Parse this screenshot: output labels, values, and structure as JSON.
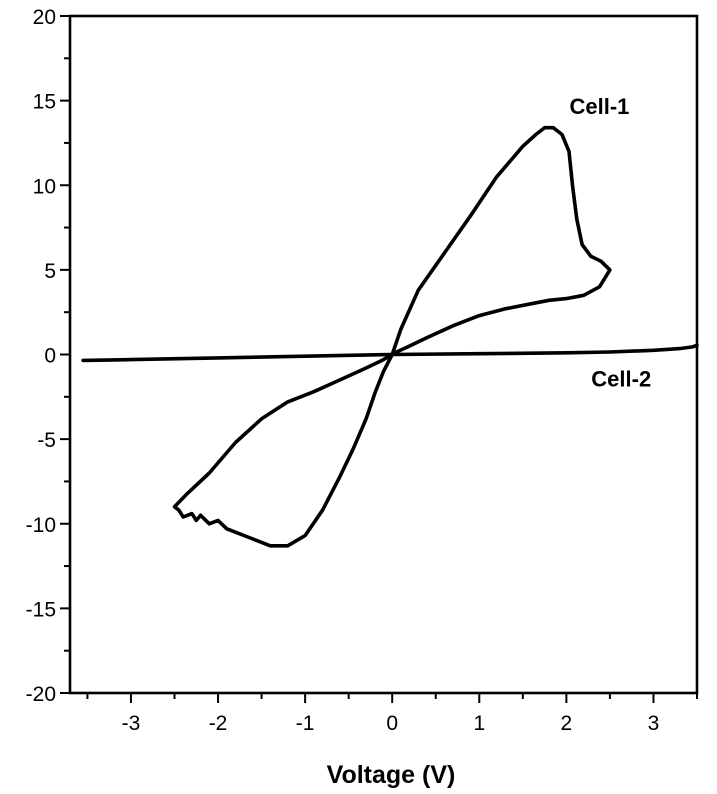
{
  "chart_data": {
    "type": "line",
    "title": "",
    "xlabel": "Voltage (V)",
    "ylabel": "",
    "xlim": [
      -3.7,
      3.5
    ],
    "ylim": [
      -20,
      20
    ],
    "x_ticks": [
      -3,
      -2,
      -1,
      0,
      1,
      2,
      3
    ],
    "y_ticks": [
      -20,
      -15,
      -10,
      -5,
      0,
      5,
      10,
      15,
      20
    ],
    "x_tick_labels": [
      "-3",
      "-2",
      "-1",
      "0",
      "1",
      "2",
      "3"
    ],
    "y_tick_labels": [
      "-20",
      "-15",
      "-10",
      "-5",
      "0",
      "5",
      "10",
      "15",
      "20"
    ],
    "grid": false,
    "legend": "none",
    "series": [
      {
        "name": "Cell-1",
        "color": "#000000",
        "x": [
          0.0,
          0.1,
          0.3,
          0.6,
          0.9,
          1.2,
          1.5,
          1.65,
          1.75,
          1.85,
          1.95,
          2.03,
          2.07,
          2.12,
          2.18,
          2.28,
          2.4,
          2.5,
          2.38,
          2.2,
          2.0,
          1.8,
          1.6,
          1.3,
          1.0,
          0.7,
          0.4,
          0.2,
          0.05,
          -0.1,
          -0.3,
          -0.6,
          -0.9,
          -1.2,
          -1.5,
          -1.8,
          -2.1,
          -2.35,
          -2.5,
          -2.45,
          -2.4,
          -2.3,
          -2.25,
          -2.2,
          -2.1,
          -2.0,
          -1.9,
          -1.8,
          -1.6,
          -1.4,
          -1.2,
          -1.0,
          -0.8,
          -0.6,
          -0.45,
          -0.3,
          -0.2,
          -0.1,
          0.0
        ],
        "y": [
          0.0,
          1.5,
          3.8,
          6.0,
          8.2,
          10.5,
          12.3,
          13.0,
          13.4,
          13.4,
          13.0,
          12.0,
          10.0,
          8.0,
          6.5,
          5.8,
          5.5,
          5.0,
          4.0,
          3.5,
          3.3,
          3.2,
          3.0,
          2.7,
          2.3,
          1.7,
          1.0,
          0.5,
          0.15,
          -0.3,
          -0.8,
          -1.5,
          -2.2,
          -2.8,
          -3.8,
          -5.2,
          -7.0,
          -8.2,
          -9.0,
          -9.2,
          -9.6,
          -9.4,
          -9.8,
          -9.5,
          -10.0,
          -9.8,
          -10.3,
          -10.5,
          -10.9,
          -11.3,
          -11.3,
          -10.7,
          -9.2,
          -7.2,
          -5.6,
          -3.8,
          -2.3,
          -1.0,
          0.0
        ]
      },
      {
        "name": "Cell-2",
        "color": "#000000",
        "x": [
          -3.55,
          -3.0,
          -2.0,
          -1.0,
          0.0,
          1.0,
          2.0,
          2.5,
          3.0,
          3.3,
          3.45,
          3.5
        ],
        "y": [
          -0.35,
          -0.3,
          -0.2,
          -0.1,
          0.0,
          0.05,
          0.1,
          0.15,
          0.25,
          0.35,
          0.45,
          0.55
        ]
      }
    ]
  }
}
